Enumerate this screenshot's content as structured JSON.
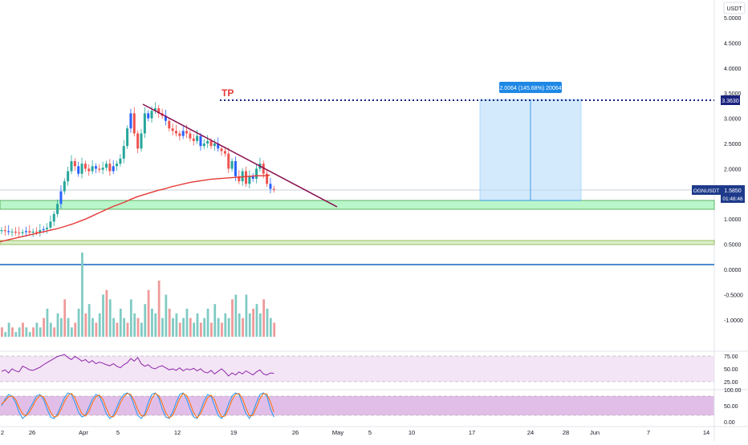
{
  "currency": "USDT",
  "symbol": "OGNUSDT",
  "last_price": "1.5850",
  "countdown": "01:48:46",
  "tp_label": "TP",
  "tp_price": "3.3630",
  "measure_label": "2.0064 (145.68%) 20064",
  "colors": {
    "bull": "#26a69a",
    "bear": "#ef5350",
    "candle_blue": "#2962ff",
    "ma": "#e53935",
    "trendline": "#880e4f",
    "tp": "#1a237e",
    "zone_green": "#b9f6ca",
    "zone_border": "#43a047",
    "measure_fill": "#bbdefb",
    "measure_line": "#1e88e5",
    "rsi": "#8e24aa",
    "rsi_band": "#f3e5f5",
    "stoch_k": "#2196f3",
    "stoch_d": "#ff6d00",
    "stoch_band": "#e1bee7"
  },
  "price_axis": [
    "5.0000",
    "4.5000",
    "4.0000",
    "3.5000",
    "3.0000",
    "2.5000",
    "2.0000",
    "1.5000",
    "1.0000",
    "0.5000",
    "0.0000",
    "-0.5000",
    "-1.0000"
  ],
  "rsi_axis": [
    "75.00",
    "50.00",
    "25.00"
  ],
  "stoch_axis": [
    "100.00",
    "50.00",
    "0.00"
  ],
  "time_axis": [
    "2",
    "26",
    "Apr",
    "5",
    "12",
    "19",
    "26",
    "May",
    "5",
    "10",
    "17",
    "24",
    "28",
    "Jun",
    "7",
    "14"
  ],
  "chart_data": {
    "type": "candlestick",
    "price_scale": {
      "min": -1.25,
      "max": 5.2
    },
    "closes": [
      0.78,
      0.76,
      0.74,
      0.75,
      0.73,
      0.72,
      0.74,
      0.76,
      0.73,
      0.75,
      0.74,
      0.78,
      0.8,
      0.83,
      0.95,
      1.1,
      1.3,
      1.55,
      1.75,
      1.95,
      2.15,
      2.05,
      1.9,
      2.1,
      2.0,
      1.95,
      2.05,
      2.0,
      1.98,
      2.02,
      2.1,
      1.95,
      2.05,
      2.1,
      2.2,
      2.45,
      2.8,
      3.1,
      2.7,
      2.4,
      2.7,
      3.1,
      3.0,
      3.15,
      3.2,
      3.1,
      3.05,
      2.95,
      2.8,
      2.75,
      2.7,
      2.65,
      2.75,
      2.7,
      2.6,
      2.55,
      2.65,
      2.45,
      2.5,
      2.55,
      2.45,
      2.5,
      2.4,
      2.35,
      2.3,
      2.0,
      2.15,
      1.85,
      1.75,
      1.95,
      1.7,
      1.85,
      1.8,
      2.0,
      2.1,
      1.9,
      1.7,
      1.6,
      1.585
    ],
    "ma": [
      0.55,
      0.58,
      0.61,
      0.64,
      0.67,
      0.7,
      0.73,
      0.76,
      0.79,
      0.82,
      0.86,
      0.9,
      0.95,
      1.0,
      1.06,
      1.12,
      1.18,
      1.24,
      1.29,
      1.34,
      1.4,
      1.45,
      1.49,
      1.53,
      1.57,
      1.6,
      1.64,
      1.67,
      1.7,
      1.73,
      1.75,
      1.77,
      1.79,
      1.8,
      1.81,
      1.82,
      1.83,
      1.84,
      1.85,
      1.86,
      1.86,
      1.87
    ],
    "volume": [
      2,
      1,
      3,
      2,
      1,
      2,
      3,
      2,
      1,
      2,
      3,
      2,
      4,
      6,
      3,
      2,
      5,
      4,
      8,
      4,
      2,
      3,
      6,
      18,
      5,
      7,
      4,
      3,
      5,
      9,
      10,
      8,
      4,
      3,
      6,
      4,
      3,
      8,
      5,
      4,
      3,
      7,
      10,
      6,
      5,
      12,
      4,
      9,
      6,
      4,
      5,
      3,
      4,
      6,
      4,
      3,
      5,
      3,
      4,
      6,
      3,
      7,
      4,
      3,
      5,
      4,
      8,
      9,
      5,
      4,
      9,
      5,
      6,
      7,
      5,
      8,
      6,
      4,
      3
    ],
    "rsi": [
      45,
      48,
      42,
      50,
      46,
      44,
      55,
      52,
      48,
      47,
      50,
      53,
      58,
      62,
      66,
      70,
      74,
      76,
      78,
      72,
      68,
      74,
      70,
      65,
      68,
      62,
      66,
      60,
      63,
      61,
      58,
      56,
      60,
      55,
      52,
      58,
      62,
      70,
      65,
      72,
      60,
      55,
      58,
      52,
      50,
      54,
      56,
      52,
      48,
      50,
      47,
      52,
      46,
      50,
      48,
      51,
      46,
      50,
      44,
      42,
      47,
      40,
      45,
      50,
      44,
      36,
      42,
      38,
      44,
      40,
      46,
      42,
      38,
      44,
      48,
      40,
      38,
      42,
      41
    ],
    "stoch_k": [
      50,
      70,
      85,
      80,
      60,
      30,
      10,
      20,
      40,
      60,
      80,
      85,
      70,
      40,
      15,
      10,
      25,
      50,
      75,
      90,
      85,
      60,
      30,
      15,
      20,
      45,
      70,
      85,
      80,
      55,
      25,
      10,
      20,
      45,
      70,
      85,
      90,
      80,
      50,
      20,
      10,
      25,
      60,
      85,
      90,
      75,
      40,
      15,
      10,
      30,
      60,
      85,
      90,
      70,
      40,
      15,
      10,
      35,
      65,
      85,
      80,
      50,
      20,
      10,
      25,
      55,
      80,
      90,
      85,
      55,
      25,
      10,
      30,
      60,
      85,
      90,
      80,
      40,
      15
    ],
    "stoch_d": [
      55,
      65,
      78,
      80,
      70,
      45,
      25,
      18,
      30,
      50,
      70,
      82,
      78,
      55,
      30,
      15,
      18,
      38,
      62,
      82,
      88,
      75,
      48,
      25,
      18,
      32,
      58,
      78,
      83,
      70,
      42,
      18,
      15,
      32,
      58,
      78,
      88,
      85,
      65,
      38,
      18,
      18,
      42,
      72,
      88,
      82,
      58,
      28,
      12,
      20,
      45,
      72,
      88,
      82,
      58,
      28,
      12,
      25,
      50,
      75,
      83,
      68,
      38,
      15,
      18,
      40,
      68,
      85,
      88,
      72,
      42,
      18,
      20,
      45,
      72,
      88,
      86,
      62,
      30
    ]
  }
}
